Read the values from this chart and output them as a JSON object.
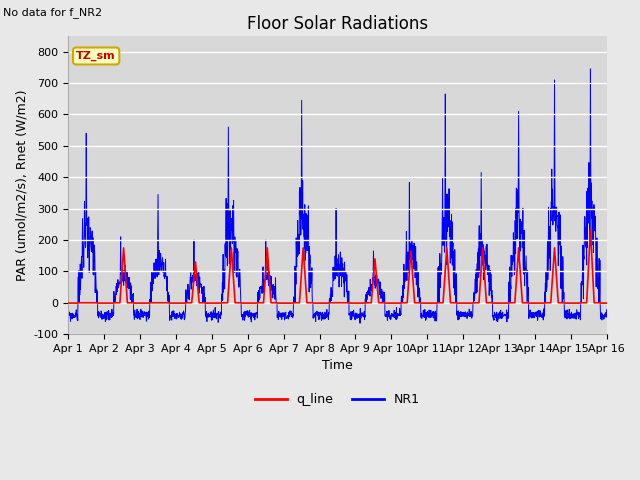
{
  "title": "Floor Solar Radiations",
  "no_data_text": "No data for f_NR2",
  "tz_label": "TZ_sm",
  "xlabel": "Time",
  "ylabel": "PAR (umol/m2/s), Rnet (W/m2)",
  "ylim": [
    -100,
    850
  ],
  "yticks": [
    -100,
    0,
    100,
    200,
    300,
    400,
    500,
    600,
    700,
    800
  ],
  "n_days": 15,
  "xtick_labels": [
    "Apr 1",
    "Apr 2",
    "Apr 3",
    "Apr 4",
    "Apr 5",
    "Apr 6",
    "Apr 7",
    "Apr 8",
    "Apr 9",
    "Apr 10",
    "Apr 11",
    "Apr 12",
    "Apr 13",
    "Apr 14",
    "Apr 15",
    "Apr 16"
  ],
  "line_red_color": "#ff0000",
  "line_blue_color": "#0000ff",
  "fig_bg_color": "#e8e8e8",
  "ax_bg_color": "#d8d8d8",
  "grid_color": "#ffffff",
  "legend_entries": [
    "q_line",
    "NR1"
  ],
  "title_fontsize": 12,
  "label_fontsize": 9,
  "tick_fontsize": 8,
  "tz_box_facecolor": "#ffffc0",
  "tz_box_edgecolor": "#ccaa00",
  "tz_text_color": "#cc0000",
  "nr1_night_mean": -40,
  "nr1_night_std": 8,
  "nr1_day_peaks": [
    540,
    210,
    345,
    200,
    560,
    200,
    645,
    300,
    165,
    383,
    665,
    415,
    610,
    710,
    745
  ],
  "q_day_peaks": [
    0,
    175,
    0,
    130,
    175,
    175,
    175,
    0,
    140,
    165,
    175,
    175,
    175,
    175,
    235
  ],
  "spike_hours": [
    12,
    11,
    12,
    12,
    11,
    12,
    12,
    11,
    12,
    12,
    12,
    12,
    13,
    13,
    13
  ]
}
